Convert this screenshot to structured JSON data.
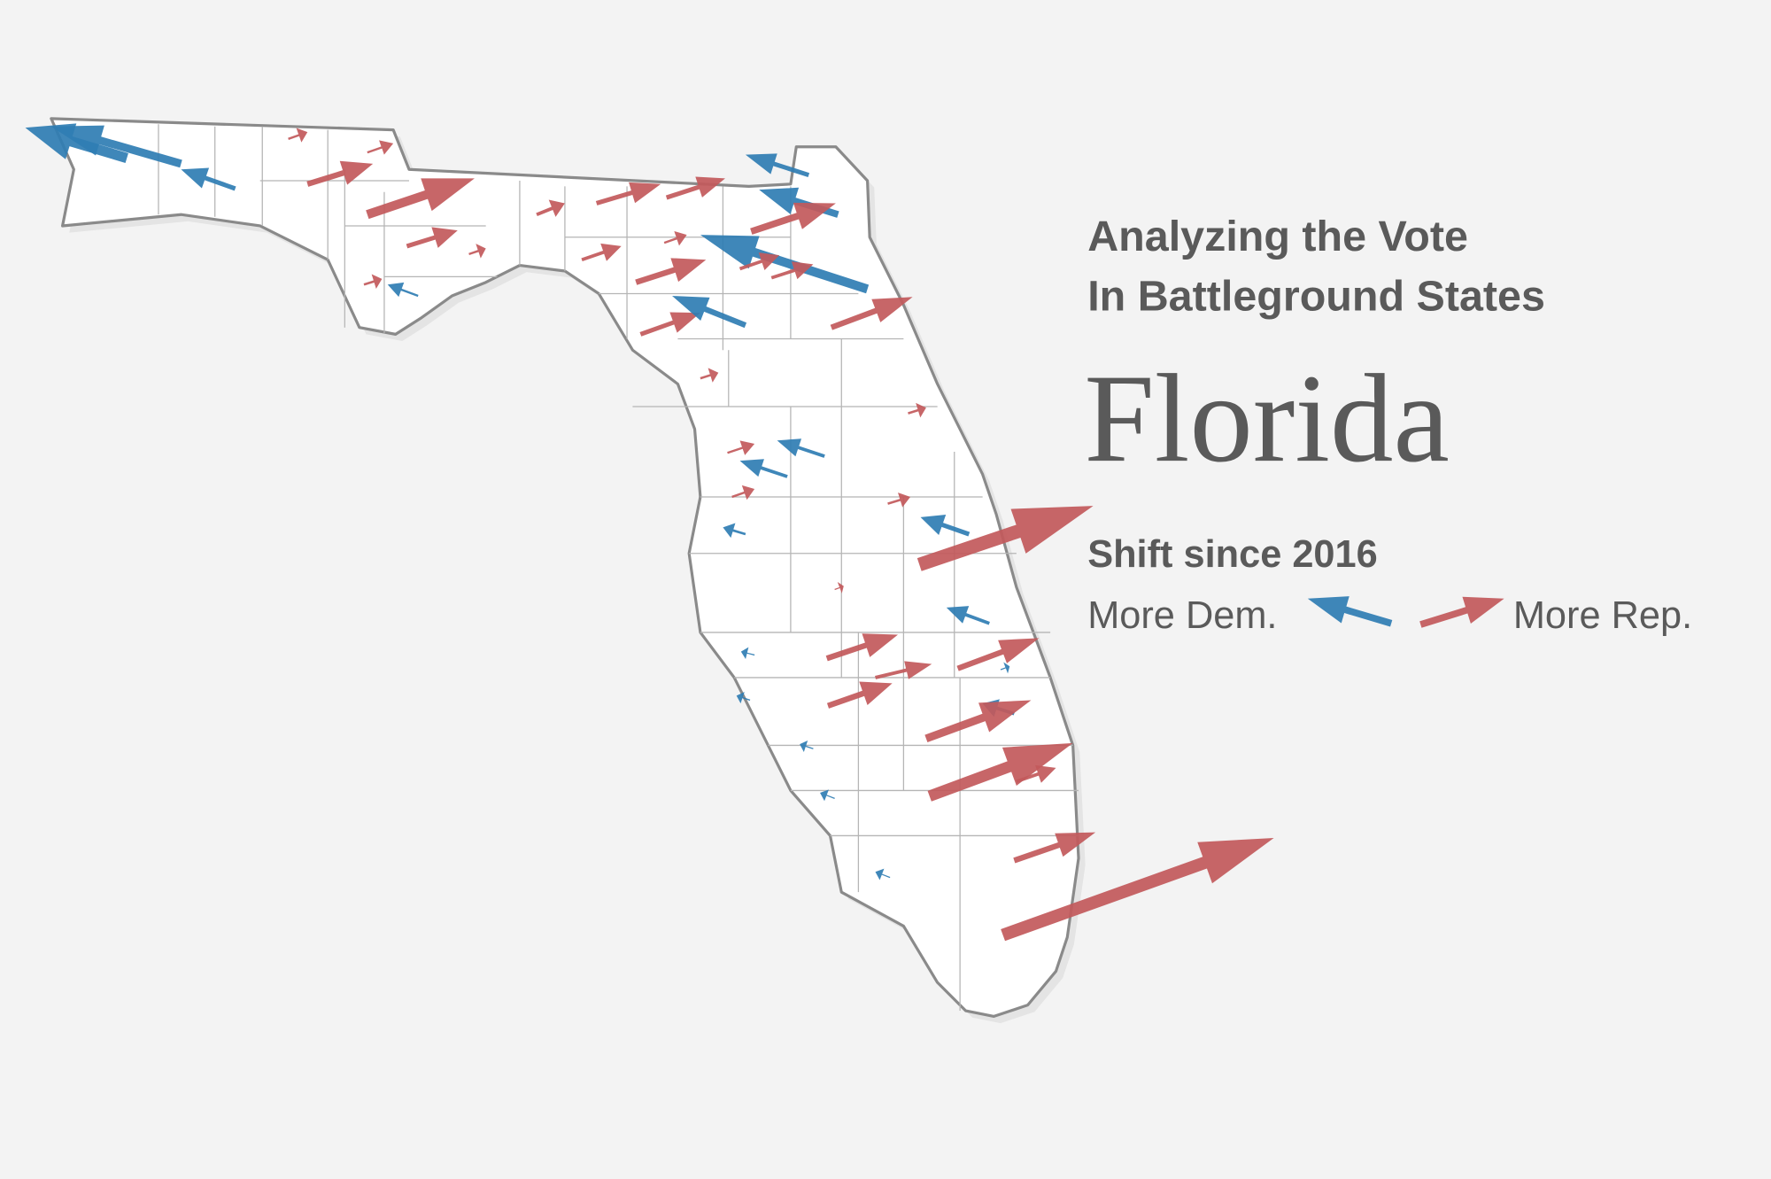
{
  "header": {
    "kicker_lines": [
      "Analyzing the Vote",
      "In Battleground States"
    ],
    "title": "Florida"
  },
  "legend": {
    "title": "Shift since 2016",
    "dem_label": "More Dem.",
    "rep_label": "More Rep."
  }
}
